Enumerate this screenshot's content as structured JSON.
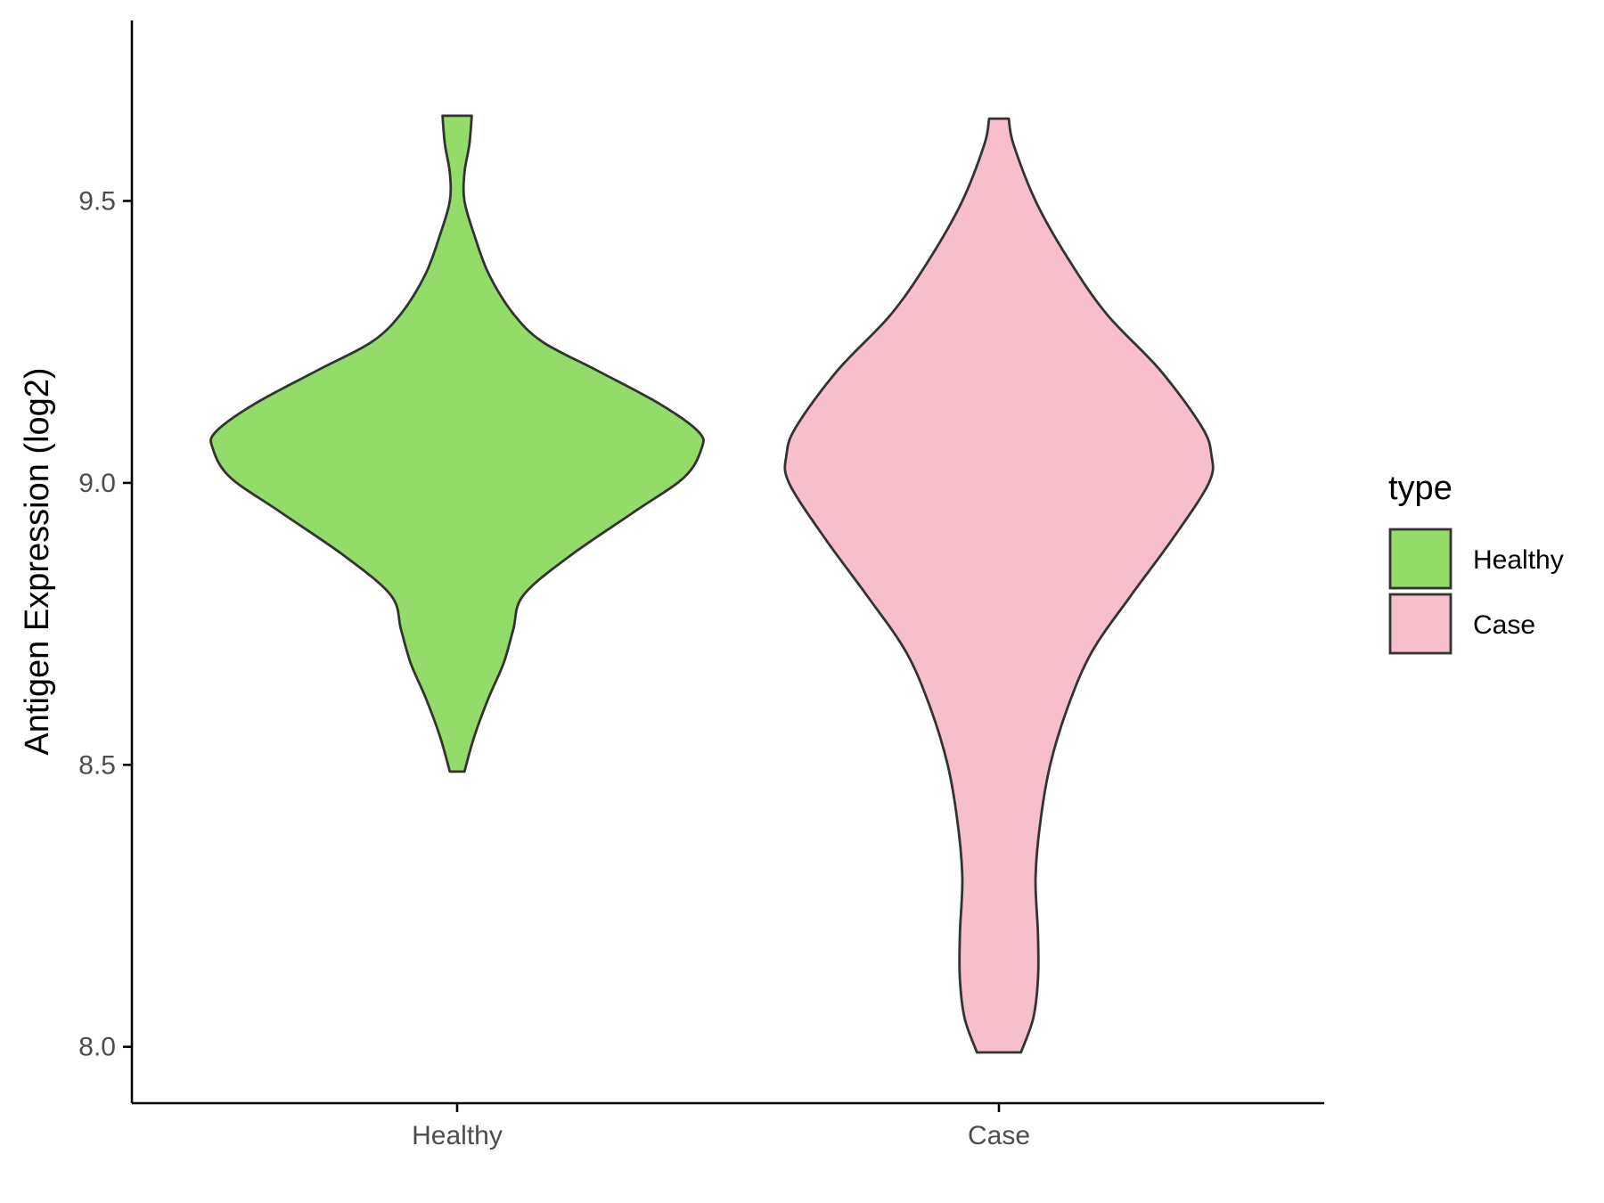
{
  "chart_data": {
    "type": "violin",
    "title": "",
    "xlabel": "",
    "ylabel": "Antigen Expression (log2)",
    "ylim": [
      7.9,
      9.82
    ],
    "yticks": [
      {
        "value": 8.0,
        "label": "8.0"
      },
      {
        "value": 8.5,
        "label": "8.5"
      },
      {
        "value": 9.0,
        "label": "9.0"
      },
      {
        "value": 9.5,
        "label": "9.5"
      }
    ],
    "categories": [
      "Healthy",
      "Case"
    ],
    "grid": false,
    "legend": {
      "title": "type",
      "position": "right",
      "entries": [
        {
          "label": "Healthy",
          "color": "#93dc6a"
        },
        {
          "label": "Case",
          "color": "#f7bfcb"
        }
      ]
    },
    "series": [
      {
        "category": "Healthy",
        "color": "#93dc6a",
        "min": 8.488,
        "max": 9.651,
        "density_halfwidth_fraction": [
          [
            8.488,
            0.03
          ],
          [
            8.55,
            0.07
          ],
          [
            8.62,
            0.13
          ],
          [
            8.68,
            0.19
          ],
          [
            8.74,
            0.23
          ],
          [
            8.8,
            0.27
          ],
          [
            8.87,
            0.46
          ],
          [
            8.95,
            0.73
          ],
          [
            9.01,
            0.93
          ],
          [
            9.06,
            1.0
          ],
          [
            9.09,
            0.99
          ],
          [
            9.14,
            0.83
          ],
          [
            9.2,
            0.57
          ],
          [
            9.25,
            0.35
          ],
          [
            9.3,
            0.23
          ],
          [
            9.37,
            0.13
          ],
          [
            9.44,
            0.07
          ],
          [
            9.5,
            0.03
          ],
          [
            9.55,
            0.03
          ],
          [
            9.6,
            0.05
          ],
          [
            9.651,
            0.06
          ]
        ]
      },
      {
        "category": "Case",
        "color": "#f7bfcb",
        "min": 7.99,
        "max": 9.646,
        "density_halfwidth_fraction": [
          [
            7.99,
            0.09
          ],
          [
            8.05,
            0.14
          ],
          [
            8.12,
            0.16
          ],
          [
            8.2,
            0.16
          ],
          [
            8.3,
            0.15
          ],
          [
            8.4,
            0.17
          ],
          [
            8.5,
            0.21
          ],
          [
            8.6,
            0.28
          ],
          [
            8.7,
            0.38
          ],
          [
            8.8,
            0.54
          ],
          [
            8.9,
            0.71
          ],
          [
            9.0,
            0.86
          ],
          [
            9.05,
            0.87
          ],
          [
            9.1,
            0.83
          ],
          [
            9.2,
            0.66
          ],
          [
            9.3,
            0.44
          ],
          [
            9.4,
            0.28
          ],
          [
            9.5,
            0.15
          ],
          [
            9.6,
            0.06
          ],
          [
            9.646,
            0.04
          ]
        ]
      }
    ]
  }
}
